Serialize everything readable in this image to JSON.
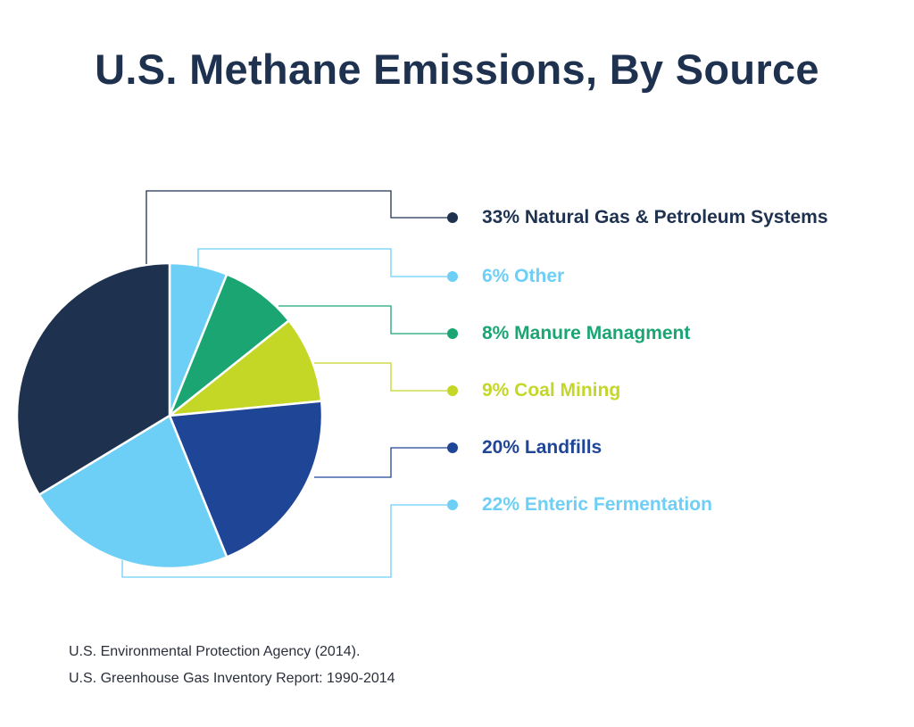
{
  "chart_data": {
    "type": "pie",
    "title": "U.S. Methane Emissions, By Source",
    "start": "top",
    "direction": "clockwise",
    "slices": [
      {
        "label": "Other",
        "value": 6,
        "text": "6% Other",
        "color": "#6dcff6"
      },
      {
        "label": "Manure Managment",
        "value": 8,
        "text": "8% Manure Managment",
        "color": "#1aa573"
      },
      {
        "label": "Coal Mining",
        "value": 9,
        "text": "9% Coal Mining",
        "color": "#c5d726"
      },
      {
        "label": "Landfills",
        "value": 20,
        "text": "20% Landfills",
        "color": "#1f4597"
      },
      {
        "label": "Enteric Fermentation",
        "value": 22,
        "text": "22% Enteric Fermentation",
        "color": "#6dcff6"
      },
      {
        "label": "Natural Gas & Petroleum Systems",
        "value": 33,
        "text": "33% Natural Gas & Petroleum Systems",
        "color": "#1e3250"
      }
    ],
    "legend_order": [
      5,
      0,
      1,
      2,
      3,
      4
    ]
  },
  "source": {
    "line1": "U.S. Environmental Protection Agency (2014).",
    "line2": "U.S. Greenhouse Gas Inventory Report: 1990-2014"
  }
}
